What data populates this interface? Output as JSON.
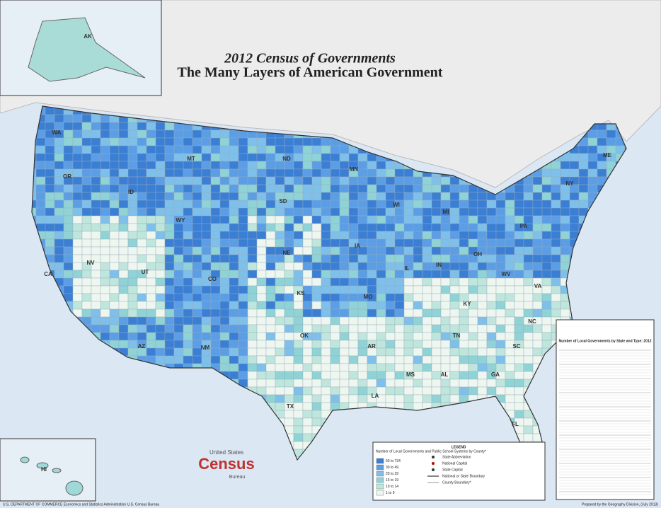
{
  "title": "2012 Census of Governments",
  "subtitle": "The Many Layers of American Government",
  "legend": {
    "heading": "LEGEND",
    "scale_title": "Number of Local Governments and Public School Systems by County*",
    "classes": [
      {
        "label": "50 to 734",
        "color": "#3b7fd4"
      },
      {
        "label": "30 to 49",
        "color": "#5b9ee6"
      },
      {
        "label": "20 to 29",
        "color": "#7fc0ea"
      },
      {
        "label": "15 to 19",
        "color": "#8fd3d6"
      },
      {
        "label": "10 to 14",
        "color": "#bfe6dc"
      },
      {
        "label": "1 to 9",
        "color": "#eef6f0"
      }
    ],
    "symbols": [
      "State Abbreviation",
      "National Capital",
      "State Capital",
      "National or State Boundary",
      "County Boundary*"
    ]
  },
  "inset_labels": [
    "AK",
    "HI"
  ],
  "state_labels": [
    "WA",
    "OR",
    "CA",
    "NV",
    "ID",
    "MT",
    "WY",
    "UT",
    "AZ",
    "CO",
    "NM",
    "ND",
    "SD",
    "NE",
    "KS",
    "OK",
    "TX",
    "MN",
    "IA",
    "MO",
    "AR",
    "LA",
    "WI",
    "IL",
    "MS",
    "MI",
    "IN",
    "KY",
    "TN",
    "AL",
    "OH",
    "GA",
    "FL",
    "WV",
    "VA",
    "NC",
    "SC",
    "PA",
    "NY",
    "ME"
  ],
  "branding": {
    "line1": "United States",
    "line2": "Census",
    "line3": "Bureau"
  },
  "table_title": "Number of Local Governments by State and Type: 2012",
  "footer_left": "U.S. DEPARTMENT OF COMMERCE  Economics and Statistics Administration  U.S. Census Bureau",
  "footer_right": "Prepared by the Geography Division, (July 2013)"
}
